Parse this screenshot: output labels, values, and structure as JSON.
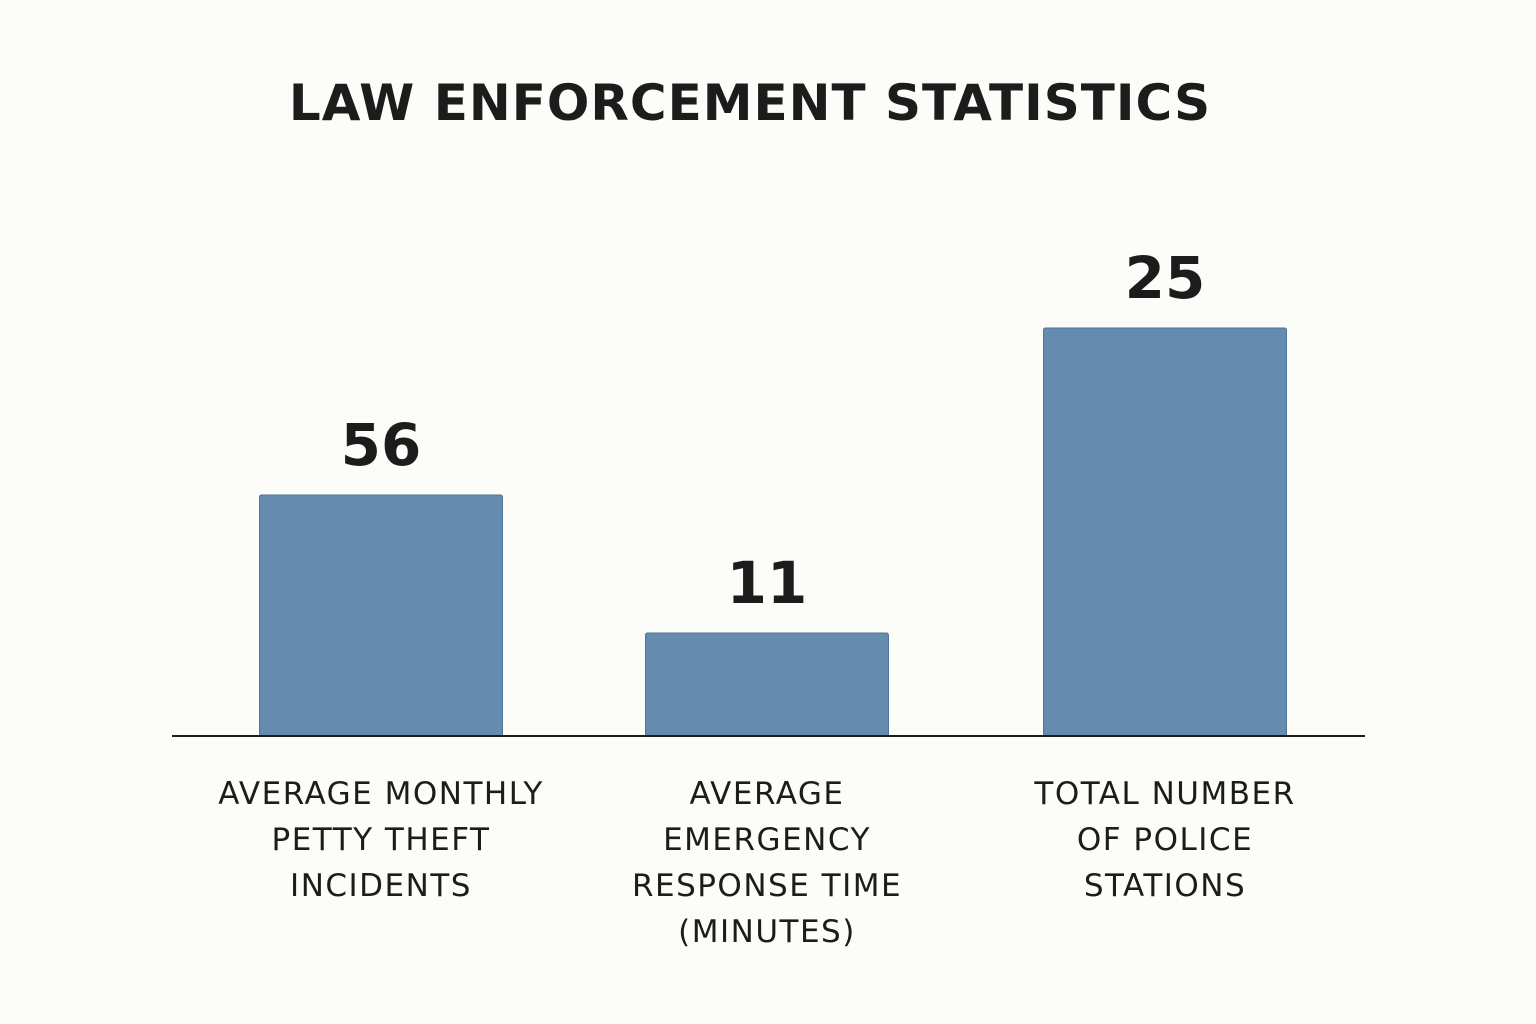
{
  "chart_data": {
    "type": "bar",
    "title": "LAW ENFORCEMENT STATISTICS",
    "categories": [
      "AVERAGE MONTHLY PETTY THEFT INCIDENTS",
      "AVERAGE EMERGENCY RESPONSE TIME (MINUTES)",
      "TOTAL NUMBER OF POLICE STATIONS"
    ],
    "category_lines": [
      [
        "AVERAGE MONTHLY",
        "PETTY THEFT",
        "INCIDENTS"
      ],
      [
        "AVERAGE",
        "EMERGENCY",
        "RESPONSE TIME",
        "(MINUTES)"
      ],
      [
        "TOTAL NUMBER",
        "OF POLICE",
        "STATIONS"
      ]
    ],
    "values": [
      56,
      11,
      25
    ],
    "data_labels": [
      "56",
      "11",
      "25"
    ],
    "xlabel": "",
    "ylabel": "",
    "grid": false,
    "legend": "none",
    "colors": {
      "bar": "#658bae",
      "bar_edge": "#4f7598",
      "axis": "#1c1c1c",
      "text": "#1c1c1c",
      "background": "#fcfcf8"
    }
  }
}
